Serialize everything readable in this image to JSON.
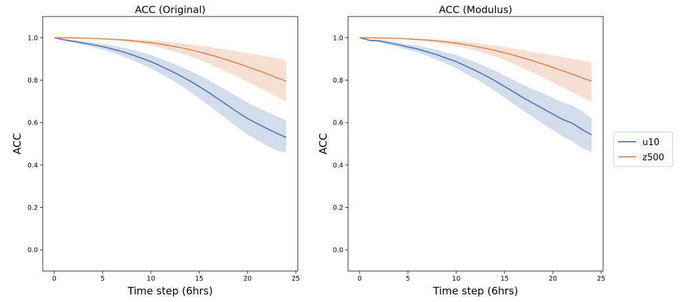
{
  "legend": {
    "entries": [
      {
        "name": "u10",
        "color": "#4c72b0"
      },
      {
        "name": "z500",
        "color": "#dd8452"
      }
    ]
  },
  "chart_data": [
    {
      "type": "line",
      "title": "ACC (Original)",
      "xlabel": "Time step (6hrs)",
      "ylabel": "ACC",
      "xlim": [
        -1.2,
        25.2
      ],
      "ylim": [
        -0.1,
        1.1
      ],
      "xticks": [
        "0",
        "5",
        "10",
        "15",
        "20",
        "25"
      ],
      "yticks": [
        "0.0",
        "0.2",
        "0.4",
        "0.6",
        "0.8",
        "1.0"
      ],
      "grid": false,
      "x": [
        0,
        1,
        2,
        3,
        4,
        5,
        6,
        7,
        8,
        9,
        10,
        11,
        12,
        13,
        14,
        15,
        16,
        17,
        18,
        19,
        20,
        21,
        22,
        23,
        24
      ],
      "series": [
        {
          "name": "u10",
          "color": "#4c72b0",
          "values": [
            1.0,
            0.99,
            0.983,
            0.975,
            0.967,
            0.958,
            0.947,
            0.935,
            0.92,
            0.904,
            0.887,
            0.867,
            0.845,
            0.822,
            0.797,
            0.77,
            0.741,
            0.71,
            0.679,
            0.648,
            0.619,
            0.595,
            0.572,
            0.55,
            0.53
          ],
          "band_lower": [
            1.0,
            0.987,
            0.977,
            0.967,
            0.956,
            0.944,
            0.93,
            0.914,
            0.896,
            0.876,
            0.855,
            0.831,
            0.805,
            0.777,
            0.747,
            0.715,
            0.681,
            0.646,
            0.611,
            0.576,
            0.544,
            0.517,
            0.492,
            0.468,
            0.46
          ],
          "band_upper": [
            1.0,
            0.993,
            0.988,
            0.983,
            0.977,
            0.971,
            0.963,
            0.955,
            0.944,
            0.932,
            0.918,
            0.902,
            0.884,
            0.865,
            0.845,
            0.823,
            0.799,
            0.774,
            0.748,
            0.72,
            0.694,
            0.671,
            0.651,
            0.631,
            0.61
          ]
        },
        {
          "name": "z500",
          "color": "#dd8452",
          "values": [
            1.0,
            1.0,
            0.999,
            0.998,
            0.997,
            0.995,
            0.993,
            0.99,
            0.986,
            0.981,
            0.976,
            0.97,
            0.962,
            0.954,
            0.944,
            0.933,
            0.921,
            0.908,
            0.894,
            0.879,
            0.863,
            0.847,
            0.83,
            0.812,
            0.795
          ],
          "band_lower": [
            1.0,
            1.0,
            0.998,
            0.997,
            0.995,
            0.992,
            0.988,
            0.984,
            0.978,
            0.971,
            0.963,
            0.953,
            0.941,
            0.928,
            0.913,
            0.896,
            0.877,
            0.857,
            0.836,
            0.814,
            0.792,
            0.769,
            0.746,
            0.722,
            0.7
          ],
          "band_upper": [
            1.0,
            1.0,
            1.0,
            0.999,
            0.998,
            0.997,
            0.996,
            0.994,
            0.992,
            0.99,
            0.987,
            0.983,
            0.979,
            0.974,
            0.969,
            0.963,
            0.957,
            0.95,
            0.943,
            0.935,
            0.928,
            0.92,
            0.912,
            0.904,
            0.895
          ]
        }
      ]
    },
    {
      "type": "line",
      "title": "ACC (Modulus)",
      "xlabel": "Time step (6hrs)",
      "ylabel": "ACC",
      "xlim": [
        -1.2,
        25.2
      ],
      "ylim": [
        -0.1,
        1.1
      ],
      "xticks": [
        "0",
        "5",
        "10",
        "15",
        "20",
        "25"
      ],
      "yticks": [
        "0.0",
        "0.2",
        "0.4",
        "0.6",
        "0.8",
        "1.0"
      ],
      "grid": false,
      "x": [
        0,
        1,
        2,
        3,
        4,
        5,
        6,
        7,
        8,
        9,
        10,
        11,
        12,
        13,
        14,
        15,
        16,
        17,
        18,
        19,
        20,
        21,
        22,
        23,
        24
      ],
      "series": [
        {
          "name": "u10",
          "color": "#4c72b0",
          "values": [
            1.0,
            0.988,
            0.985,
            0.976,
            0.967,
            0.956,
            0.947,
            0.933,
            0.92,
            0.903,
            0.887,
            0.866,
            0.845,
            0.822,
            0.797,
            0.77,
            0.743,
            0.715,
            0.69,
            0.665,
            0.64,
            0.615,
            0.597,
            0.568,
            0.542
          ],
          "band_lower": [
            1.0,
            0.985,
            0.979,
            0.968,
            0.956,
            0.943,
            0.931,
            0.914,
            0.897,
            0.877,
            0.856,
            0.831,
            0.806,
            0.779,
            0.749,
            0.718,
            0.686,
            0.654,
            0.624,
            0.594,
            0.564,
            0.535,
            0.513,
            0.481,
            0.46
          ],
          "band_upper": [
            1.0,
            0.991,
            0.991,
            0.984,
            0.978,
            0.969,
            0.963,
            0.952,
            0.943,
            0.929,
            0.918,
            0.901,
            0.884,
            0.865,
            0.845,
            0.822,
            0.8,
            0.776,
            0.756,
            0.736,
            0.716,
            0.695,
            0.681,
            0.655,
            0.62
          ]
        },
        {
          "name": "z500",
          "color": "#dd8452",
          "values": [
            1.0,
            1.0,
            0.999,
            0.998,
            0.997,
            0.995,
            0.992,
            0.989,
            0.985,
            0.98,
            0.974,
            0.967,
            0.959,
            0.95,
            0.94,
            0.929,
            0.917,
            0.904,
            0.89,
            0.875,
            0.86,
            0.844,
            0.828,
            0.811,
            0.795
          ],
          "band_lower": [
            1.0,
            1.0,
            0.998,
            0.996,
            0.994,
            0.991,
            0.987,
            0.982,
            0.976,
            0.969,
            0.961,
            0.951,
            0.939,
            0.926,
            0.911,
            0.894,
            0.875,
            0.855,
            0.834,
            0.812,
            0.789,
            0.766,
            0.743,
            0.72,
            0.7
          ],
          "band_upper": [
            1.0,
            1.0,
            1.0,
            0.999,
            0.998,
            0.997,
            0.995,
            0.993,
            0.991,
            0.988,
            0.984,
            0.98,
            0.975,
            0.969,
            0.963,
            0.956,
            0.949,
            0.941,
            0.933,
            0.925,
            0.917,
            0.909,
            0.9,
            0.892,
            0.885
          ]
        }
      ]
    }
  ]
}
